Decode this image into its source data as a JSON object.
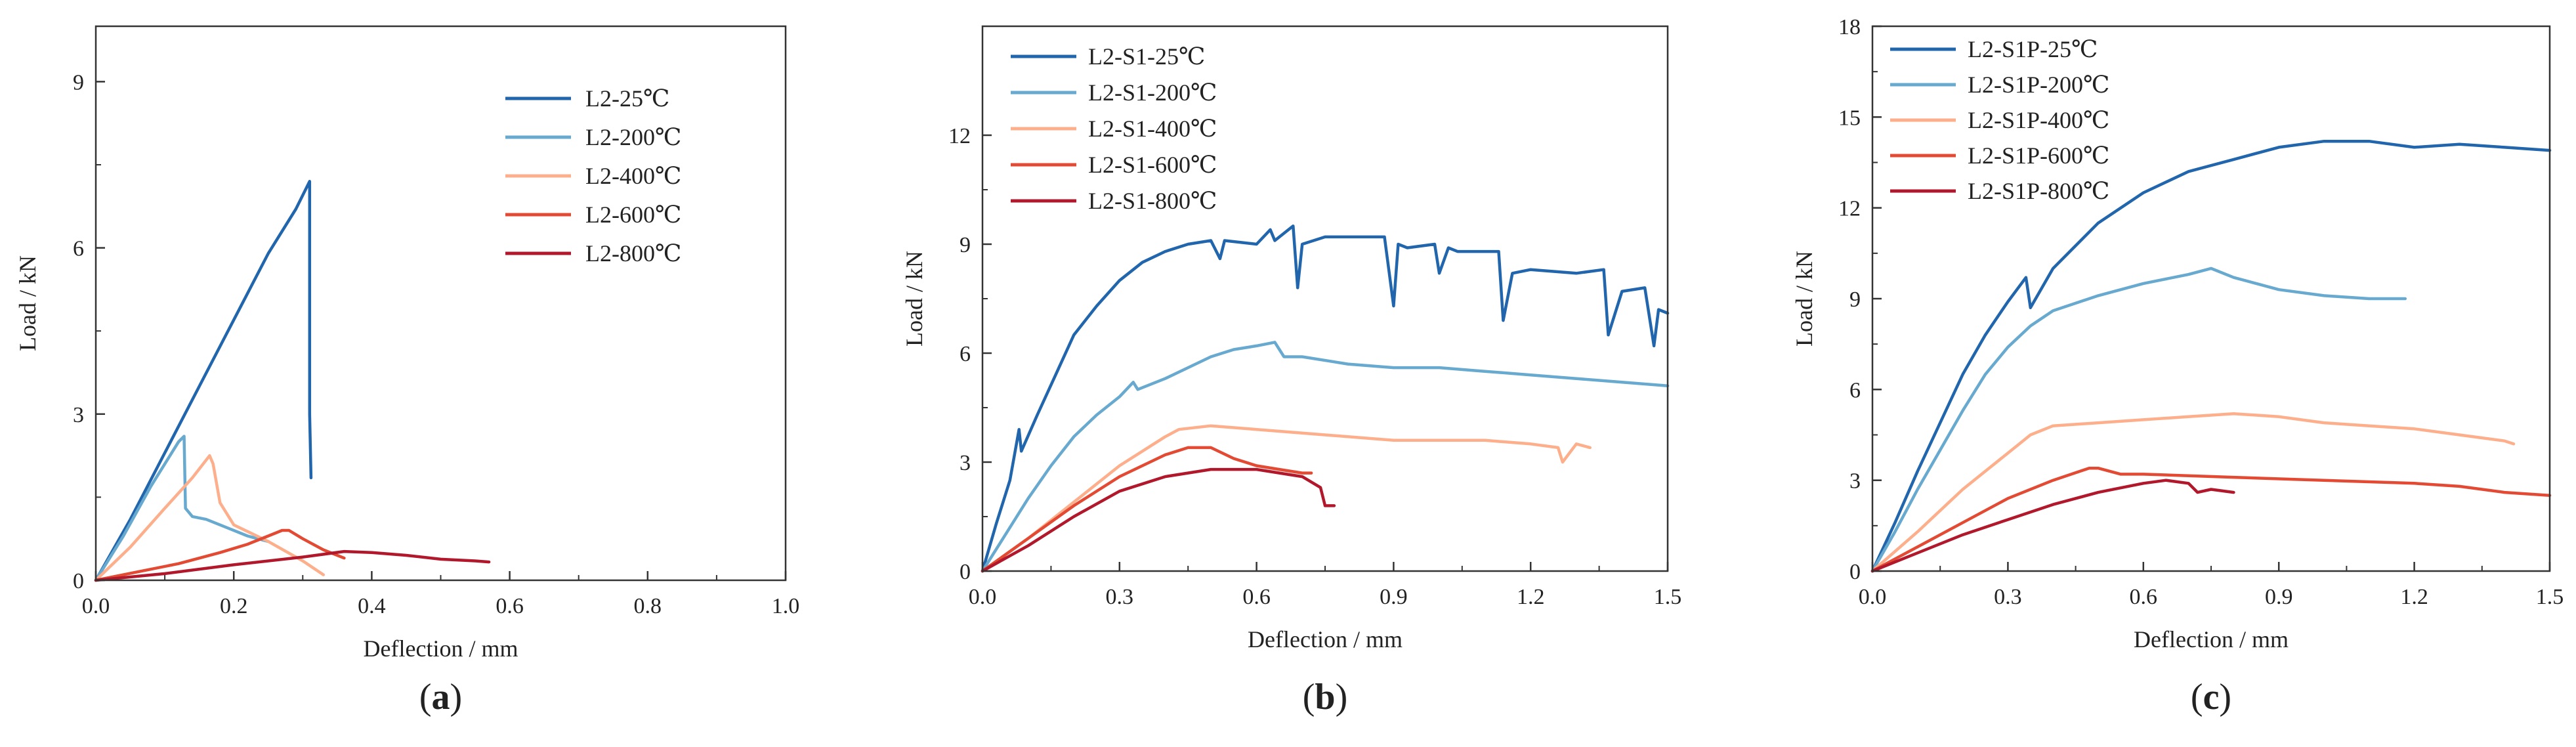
{
  "chart_data": [
    {
      "type": "line",
      "panel_label": "(a)",
      "panel_letter": "a",
      "xlabel": "Deflection / mm",
      "ylabel": "Load / kN",
      "xlim": [
        0,
        1.0
      ],
      "ylim": [
        0,
        10
      ],
      "xticks": [
        0.0,
        0.2,
        0.4,
        0.6,
        0.8,
        1.0
      ],
      "xtick_labels": [
        "0.0",
        "0.2",
        "0.4",
        "0.6",
        "0.8",
        "1.0"
      ],
      "yticks": [
        0,
        3,
        6,
        9
      ],
      "ytick_labels": [
        "0",
        "3",
        "6",
        "9"
      ],
      "legend_position": "top-right",
      "grid": false,
      "series": [
        {
          "name": "L2-25℃",
          "color": "#2166ac",
          "x": [
            0,
            0.05,
            0.1,
            0.15,
            0.2,
            0.25,
            0.29,
            0.31,
            0.31,
            0.312
          ],
          "y": [
            0,
            1.1,
            2.3,
            3.5,
            4.7,
            5.9,
            6.7,
            7.2,
            3.0,
            1.85
          ]
        },
        {
          "name": "L2-200℃",
          "color": "#67a9cf",
          "x": [
            0,
            0.04,
            0.08,
            0.12,
            0.128,
            0.13,
            0.14,
            0.16,
            0.19,
            0.22,
            0.25
          ],
          "y": [
            0,
            0.8,
            1.7,
            2.5,
            2.6,
            1.3,
            1.15,
            1.1,
            0.95,
            0.8,
            0.7
          ]
        },
        {
          "name": "L2-400℃",
          "color": "#fdae8b",
          "x": [
            0,
            0.05,
            0.1,
            0.14,
            0.165,
            0.17,
            0.18,
            0.2,
            0.25,
            0.3,
            0.33
          ],
          "y": [
            0,
            0.6,
            1.3,
            1.85,
            2.25,
            2.1,
            1.4,
            1.0,
            0.7,
            0.35,
            0.1
          ]
        },
        {
          "name": "L2-600℃",
          "color": "#e34a33",
          "x": [
            0,
            0.06,
            0.12,
            0.18,
            0.22,
            0.25,
            0.27,
            0.28,
            0.3,
            0.33,
            0.36
          ],
          "y": [
            0,
            0.15,
            0.3,
            0.5,
            0.65,
            0.8,
            0.9,
            0.9,
            0.75,
            0.55,
            0.4
          ]
        },
        {
          "name": "L2-800℃",
          "color": "#b2182b",
          "x": [
            0,
            0.1,
            0.2,
            0.3,
            0.36,
            0.4,
            0.45,
            0.5,
            0.55,
            0.57
          ],
          "y": [
            0,
            0.12,
            0.28,
            0.42,
            0.52,
            0.5,
            0.45,
            0.38,
            0.35,
            0.33
          ]
        }
      ]
    },
    {
      "type": "line",
      "panel_label": "(b)",
      "panel_letter": "b",
      "xlabel": "Deflection / mm",
      "ylabel": "Load / kN",
      "xlim": [
        0,
        1.5
      ],
      "ylim": [
        0,
        15
      ],
      "xticks": [
        0.0,
        0.3,
        0.6,
        0.9,
        1.2,
        1.5
      ],
      "xtick_labels": [
        "0.0",
        "0.3",
        "0.6",
        "0.9",
        "1.2",
        "1.5"
      ],
      "yticks": [
        0,
        3,
        6,
        9,
        12
      ],
      "ytick_labels": [
        "0",
        "3",
        "6",
        "9",
        "12"
      ],
      "legend_position": "top-left",
      "grid": false,
      "series": [
        {
          "name": "L2-S1-25℃",
          "color": "#2166ac",
          "x": [
            0,
            0.03,
            0.06,
            0.08,
            0.085,
            0.12,
            0.16,
            0.2,
            0.25,
            0.3,
            0.35,
            0.4,
            0.45,
            0.5,
            0.52,
            0.53,
            0.6,
            0.63,
            0.64,
            0.68,
            0.69,
            0.7,
            0.75,
            0.8,
            0.88,
            0.9,
            0.91,
            0.93,
            0.99,
            1.0,
            1.02,
            1.04,
            1.13,
            1.14,
            1.16,
            1.2,
            1.3,
            1.36,
            1.37,
            1.4,
            1.45,
            1.47,
            1.48,
            1.5
          ],
          "y": [
            0,
            1.3,
            2.5,
            3.9,
            3.3,
            4.3,
            5.4,
            6.5,
            7.3,
            8.0,
            8.5,
            8.8,
            9.0,
            9.1,
            8.6,
            9.1,
            9.0,
            9.4,
            9.1,
            9.5,
            7.8,
            9.0,
            9.2,
            9.2,
            9.2,
            7.3,
            9.0,
            8.9,
            9.0,
            8.2,
            8.9,
            8.8,
            8.8,
            6.9,
            8.2,
            8.3,
            8.2,
            8.3,
            6.5,
            7.7,
            7.8,
            6.2,
            7.2,
            7.1
          ]
        },
        {
          "name": "L2-S1-200℃",
          "color": "#67a9cf",
          "x": [
            0,
            0.05,
            0.1,
            0.15,
            0.2,
            0.25,
            0.3,
            0.33,
            0.34,
            0.4,
            0.45,
            0.5,
            0.55,
            0.6,
            0.64,
            0.66,
            0.7,
            0.8,
            0.9,
            1.0,
            1.1,
            1.2,
            1.3,
            1.4,
            1.5
          ],
          "y": [
            0,
            1.0,
            2.0,
            2.9,
            3.7,
            4.3,
            4.8,
            5.2,
            5.0,
            5.3,
            5.6,
            5.9,
            6.1,
            6.2,
            6.3,
            5.9,
            5.9,
            5.7,
            5.6,
            5.6,
            5.5,
            5.4,
            5.3,
            5.2,
            5.1
          ]
        },
        {
          "name": "L2-S1-400℃",
          "color": "#fdae8b",
          "x": [
            0,
            0.1,
            0.2,
            0.3,
            0.4,
            0.43,
            0.5,
            0.6,
            0.7,
            0.8,
            0.9,
            1.0,
            1.1,
            1.2,
            1.26,
            1.27,
            1.3,
            1.33
          ],
          "y": [
            0,
            0.9,
            1.9,
            2.9,
            3.7,
            3.9,
            4.0,
            3.9,
            3.8,
            3.7,
            3.6,
            3.6,
            3.6,
            3.5,
            3.4,
            3.0,
            3.5,
            3.4
          ]
        },
        {
          "name": "L2-S1-600℃",
          "color": "#e34a33",
          "x": [
            0,
            0.1,
            0.2,
            0.3,
            0.4,
            0.45,
            0.5,
            0.55,
            0.6,
            0.65,
            0.7,
            0.72
          ],
          "y": [
            0,
            0.9,
            1.8,
            2.6,
            3.2,
            3.4,
            3.4,
            3.1,
            2.9,
            2.8,
            2.7,
            2.7
          ]
        },
        {
          "name": "L2-S1-800℃",
          "color": "#b2182b",
          "x": [
            0,
            0.1,
            0.2,
            0.3,
            0.4,
            0.5,
            0.55,
            0.6,
            0.65,
            0.7,
            0.74,
            0.75,
            0.77
          ],
          "y": [
            0,
            0.7,
            1.5,
            2.2,
            2.6,
            2.8,
            2.8,
            2.8,
            2.7,
            2.6,
            2.3,
            1.8,
            1.8
          ]
        }
      ]
    },
    {
      "type": "line",
      "panel_label": "(c)",
      "panel_letter": "c",
      "xlabel": "Deflection / mm",
      "ylabel": "Load / kN",
      "xlim": [
        0,
        1.5
      ],
      "ylim": [
        0,
        18
      ],
      "xticks": [
        0.0,
        0.3,
        0.6,
        0.9,
        1.2,
        1.5
      ],
      "xtick_labels": [
        "0.0",
        "0.3",
        "0.6",
        "0.9",
        "1.2",
        "1.5"
      ],
      "yticks": [
        0,
        3,
        6,
        9,
        12,
        15,
        18
      ],
      "ytick_labels": [
        "0",
        "3",
        "6",
        "9",
        "12",
        "15",
        "18"
      ],
      "legend_position": "top-left",
      "grid": false,
      "series": [
        {
          "name": "L2-S1P-25℃",
          "color": "#2166ac",
          "x": [
            0,
            0.05,
            0.1,
            0.15,
            0.2,
            0.25,
            0.3,
            0.34,
            0.35,
            0.4,
            0.5,
            0.6,
            0.7,
            0.8,
            0.9,
            1.0,
            1.1,
            1.2,
            1.3,
            1.4,
            1.5
          ],
          "y": [
            0,
            1.6,
            3.3,
            4.9,
            6.5,
            7.8,
            8.9,
            9.7,
            8.7,
            10.0,
            11.5,
            12.5,
            13.2,
            13.6,
            14.0,
            14.2,
            14.2,
            14.0,
            14.1,
            14.0,
            13.9
          ]
        },
        {
          "name": "L2-S1P-200℃",
          "color": "#67a9cf",
          "x": [
            0,
            0.05,
            0.1,
            0.15,
            0.2,
            0.25,
            0.3,
            0.35,
            0.4,
            0.5,
            0.6,
            0.7,
            0.75,
            0.8,
            0.85,
            0.9,
            1.0,
            1.1,
            1.18
          ],
          "y": [
            0,
            1.3,
            2.7,
            4.0,
            5.3,
            6.5,
            7.4,
            8.1,
            8.6,
            9.1,
            9.5,
            9.8,
            10.0,
            9.7,
            9.5,
            9.3,
            9.1,
            9.0,
            9.0
          ]
        },
        {
          "name": "L2-S1P-400℃",
          "color": "#fdae8b",
          "x": [
            0,
            0.1,
            0.2,
            0.3,
            0.35,
            0.4,
            0.5,
            0.6,
            0.7,
            0.8,
            0.9,
            1.0,
            1.1,
            1.2,
            1.3,
            1.4,
            1.42
          ],
          "y": [
            0,
            1.3,
            2.7,
            3.9,
            4.5,
            4.8,
            4.9,
            5.0,
            5.1,
            5.2,
            5.1,
            4.9,
            4.8,
            4.7,
            4.5,
            4.3,
            4.2
          ]
        },
        {
          "name": "L2-S1P-600℃",
          "color": "#e34a33",
          "x": [
            0,
            0.1,
            0.2,
            0.3,
            0.4,
            0.48,
            0.5,
            0.55,
            0.6,
            0.8,
            1.0,
            1.2,
            1.3,
            1.4,
            1.5
          ],
          "y": [
            0,
            0.8,
            1.6,
            2.4,
            3.0,
            3.4,
            3.4,
            3.2,
            3.2,
            3.1,
            3.0,
            2.9,
            2.8,
            2.6,
            2.5
          ]
        },
        {
          "name": "L2-S1P-800℃",
          "color": "#b2182b",
          "x": [
            0,
            0.1,
            0.2,
            0.3,
            0.4,
            0.5,
            0.6,
            0.65,
            0.7,
            0.72,
            0.75,
            0.8
          ],
          "y": [
            0,
            0.6,
            1.2,
            1.7,
            2.2,
            2.6,
            2.9,
            3.0,
            2.9,
            2.6,
            2.7,
            2.6
          ]
        }
      ]
    }
  ]
}
